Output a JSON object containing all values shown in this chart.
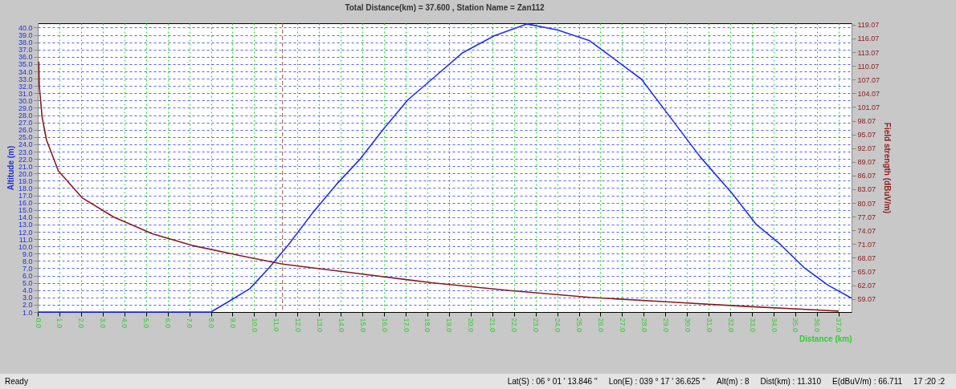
{
  "chart_data": {
    "type": "line",
    "title": "Total Distance(km) = 37.600 , Station Name = Zan112",
    "xlabel": "Distance (km)",
    "ylabel": "Altitude (m)",
    "y2label": "Field strength (dBuV/m)",
    "xlim": [
      0,
      37.6
    ],
    "xticks": [
      {
        "value": 0,
        "label": "0.0"
      },
      {
        "value": 1,
        "label": "1.0"
      },
      {
        "value": 2,
        "label": "2.0"
      },
      {
        "value": 3,
        "label": "3.0"
      },
      {
        "value": 4,
        "label": "4.0"
      },
      {
        "value": 5,
        "label": "5.0"
      },
      {
        "value": 6,
        "label": "6.0"
      },
      {
        "value": 7,
        "label": "7.0"
      },
      {
        "value": 8,
        "label": "8.0"
      },
      {
        "value": 9,
        "label": "9.0"
      },
      {
        "value": 10,
        "label": "10.0"
      },
      {
        "value": 11,
        "label": "11.0"
      },
      {
        "value": 12,
        "label": "12.0"
      },
      {
        "value": 13,
        "label": "13.0"
      },
      {
        "value": 14,
        "label": "14.0"
      },
      {
        "value": 15,
        "label": "15.0"
      },
      {
        "value": 16,
        "label": "16.0"
      },
      {
        "value": 17,
        "label": "17.0"
      },
      {
        "value": 18,
        "label": "18.0"
      },
      {
        "value": 19,
        "label": "19.0"
      },
      {
        "value": 20,
        "label": "20.0"
      },
      {
        "value": 21,
        "label": "21.0"
      },
      {
        "value": 22,
        "label": "22.0"
      },
      {
        "value": 23,
        "label": "23.0"
      },
      {
        "value": 24,
        "label": "24.0"
      },
      {
        "value": 25,
        "label": "25.0"
      },
      {
        "value": 26,
        "label": "26.0"
      },
      {
        "value": 27,
        "label": "27.0"
      },
      {
        "value": 28,
        "label": "28.0"
      },
      {
        "value": 29,
        "label": "29.0"
      },
      {
        "value": 30,
        "label": "30.0"
      },
      {
        "value": 31,
        "label": "31.0"
      },
      {
        "value": 32,
        "label": "32.0"
      },
      {
        "value": 33,
        "label": "33.0"
      },
      {
        "value": 34,
        "label": "34.0"
      },
      {
        "value": 35,
        "label": "35.0"
      },
      {
        "value": 36,
        "label": "36.0"
      },
      {
        "value": 37,
        "label": "37.0"
      }
    ],
    "ylim": [
      1,
      40.6
    ],
    "yticks": [
      {
        "value": 1,
        "label": "1.0"
      },
      {
        "value": 2,
        "label": "2.0"
      },
      {
        "value": 3,
        "label": "3.0"
      },
      {
        "value": 4,
        "label": "4.0"
      },
      {
        "value": 5,
        "label": "5.0"
      },
      {
        "value": 6,
        "label": "6.0"
      },
      {
        "value": 7,
        "label": "7.0"
      },
      {
        "value": 8,
        "label": "8.0"
      },
      {
        "value": 9,
        "label": "9.0"
      },
      {
        "value": 10,
        "label": "10.0"
      },
      {
        "value": 11,
        "label": "11.0"
      },
      {
        "value": 12,
        "label": "12.0"
      },
      {
        "value": 13,
        "label": "13.0"
      },
      {
        "value": 14,
        "label": "14.0"
      },
      {
        "value": 15,
        "label": "15.0"
      },
      {
        "value": 16,
        "label": "16.0"
      },
      {
        "value": 17,
        "label": "17.0"
      },
      {
        "value": 18,
        "label": "18.0"
      },
      {
        "value": 19,
        "label": "19.0"
      },
      {
        "value": 20,
        "label": "20.0"
      },
      {
        "value": 21,
        "label": "21.0"
      },
      {
        "value": 22,
        "label": "22.0"
      },
      {
        "value": 23,
        "label": "23.0"
      },
      {
        "value": 24,
        "label": "24.0"
      },
      {
        "value": 25,
        "label": "25.0"
      },
      {
        "value": 26,
        "label": "26.0"
      },
      {
        "value": 27,
        "label": "27.0"
      },
      {
        "value": 28,
        "label": "28.0"
      },
      {
        "value": 29,
        "label": "29.0"
      },
      {
        "value": 30,
        "label": "30.0"
      },
      {
        "value": 31,
        "label": "31.0"
      },
      {
        "value": 32,
        "label": "32.0"
      },
      {
        "value": 33,
        "label": "33.0"
      },
      {
        "value": 34,
        "label": "34.0"
      },
      {
        "value": 35,
        "label": "35.0"
      },
      {
        "value": 36,
        "label": "36.0"
      },
      {
        "value": 37,
        "label": "37.0"
      },
      {
        "value": 38,
        "label": "38.0"
      },
      {
        "value": 39,
        "label": "39.0"
      },
      {
        "value": 40,
        "label": "40.0"
      }
    ],
    "y2lim": [
      56.2,
      119.4
    ],
    "y2ticks": [
      59.07,
      62.07,
      65.07,
      68.07,
      71.07,
      74.07,
      77.07,
      80.07,
      83.07,
      86.07,
      89.07,
      92.07,
      95.07,
      98.07,
      101.07,
      104.07,
      107.07,
      110.07,
      113.07,
      116.07,
      119.07
    ],
    "grid": true,
    "series": [
      {
        "color": "#1f2ff0",
        "x": [
          0,
          8.0,
          8.8,
          9.8,
          10.7,
          11.6,
          12.7,
          13.8,
          14.9,
          16.0,
          17.1,
          18.2,
          19.6,
          21.1,
          22.6,
          24.0,
          25.5,
          27.0,
          27.9,
          29.2,
          30.6,
          32.1,
          33.2,
          34.3,
          35.4,
          36.5,
          37.6
        ],
        "values": [
          1.0,
          1.0,
          2.4,
          4.2,
          7.1,
          10.3,
          14.6,
          18.5,
          22.0,
          26.2,
          30.1,
          32.9,
          36.5,
          38.9,
          40.5,
          39.7,
          38.2,
          34.9,
          32.9,
          27.8,
          22.3,
          17.2,
          13.0,
          10.3,
          7.1,
          4.7,
          2.9
        ]
      },
      {
        "color": "#8b1a1a",
        "axis": "y2",
        "x": [
          0.05,
          0.07,
          0.2,
          0.4,
          0.95,
          2.05,
          3.5,
          5.3,
          7.2,
          9.4,
          11.31,
          14.5,
          18.2,
          21.8,
          25.5,
          29.2,
          32.8,
          37.0
        ],
        "values": [
          111.0,
          105.7,
          98.9,
          93.9,
          87.1,
          81.2,
          77.0,
          73.3,
          70.7,
          68.5,
          66.7,
          64.8,
          62.6,
          60.9,
          59.4,
          58.4,
          57.4,
          56.4
        ]
      }
    ],
    "ref_lines": [
      {
        "axis": "x",
        "value": 11.31,
        "color": "#a0522d",
        "line_style": "dashed"
      }
    ],
    "annotations": [
      "Ready",
      "Lat(S) : 06 ° 01 ' 13.846 ''",
      "Lon(E) : 039 ° 17 ' 36.625 ''",
      "Alt(m) : 8",
      "Dist(km) : 11.310",
      "E(dBuV/m) : 66.711",
      "17 :20 :2"
    ]
  }
}
